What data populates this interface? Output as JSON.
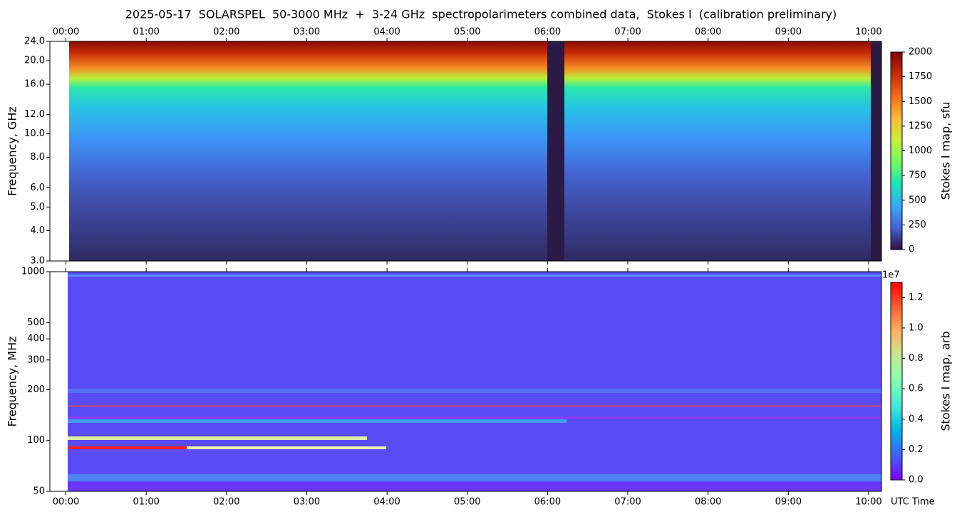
{
  "chart_data": [
    {
      "type": "heatmap",
      "title": "2025-05-17  SOLARSPEL  50-3000 MHz  +  3-24 GHz  spectropolarimeters combined data,  Stokes I  (calibration preliminary)",
      "ylabel": "Frequency, GHz",
      "xlim": [
        -0.2,
        10.16
      ],
      "xticks": [
        {
          "value": 0,
          "label": "00:00"
        },
        {
          "value": 1,
          "label": "01:00"
        },
        {
          "value": 2,
          "label": "02:00"
        },
        {
          "value": 3,
          "label": "03:00"
        },
        {
          "value": 4,
          "label": "04:00"
        },
        {
          "value": 5,
          "label": "05:00"
        },
        {
          "value": 6,
          "label": "06:00"
        },
        {
          "value": 7,
          "label": "07:00"
        },
        {
          "value": 8,
          "label": "08:00"
        },
        {
          "value": 9,
          "label": "09:00"
        },
        {
          "value": 10,
          "label": "10:00"
        }
      ],
      "ylim": [
        3,
        24
      ],
      "log_y": true,
      "yticks": [
        {
          "value": 3,
          "label": "3.0"
        },
        {
          "value": 4,
          "label": "4.0"
        },
        {
          "value": 5,
          "label": "5.0"
        },
        {
          "value": 6,
          "label": "6.0"
        },
        {
          "value": 8,
          "label": "8.0"
        },
        {
          "value": 10,
          "label": "10.0"
        },
        {
          "value": 12,
          "label": "12.0"
        },
        {
          "value": 16,
          "label": "16.0"
        },
        {
          "value": 20,
          "label": "20.0"
        },
        {
          "value": 24,
          "label": "24.0"
        }
      ],
      "colorbar": {
        "label": "Stokes I map, sfu",
        "lim": [
          0,
          2000
        ],
        "ticks": [
          0,
          250,
          500,
          750,
          1000,
          1250,
          1500,
          1750,
          2000
        ],
        "colormap": [
          "#30123b",
          "#4662d7",
          "#36aaf9",
          "#1ae4b6",
          "#72fe5e",
          "#c8ef34",
          "#faba39",
          "#f66b19",
          "#ca2a04",
          "#7a0403"
        ]
      }
    },
    {
      "type": "heatmap",
      "ylabel": "Frequency, MHz",
      "xlabel": "UTC Time",
      "xlim": [
        -0.2,
        10.16
      ],
      "xticks": [
        {
          "value": 0,
          "label": "00:00"
        },
        {
          "value": 1,
          "label": "01:00"
        },
        {
          "value": 2,
          "label": "02:00"
        },
        {
          "value": 3,
          "label": "03:00"
        },
        {
          "value": 4,
          "label": "04:00"
        },
        {
          "value": 5,
          "label": "05:00"
        },
        {
          "value": 6,
          "label": "06:00"
        },
        {
          "value": 7,
          "label": "07:00"
        },
        {
          "value": 8,
          "label": "08:00"
        },
        {
          "value": 9,
          "label": "09:00"
        },
        {
          "value": 10,
          "label": "10:00"
        }
      ],
      "ylim": [
        50,
        1000
      ],
      "log_y": true,
      "yticks": [
        50,
        100,
        200,
        300,
        400,
        500,
        1000
      ],
      "colorbar": {
        "label": "Stokes I map, arb",
        "lim": [
          0,
          1.3
        ],
        "offset": "1e7",
        "ticks": [
          {
            "value": 0,
            "label": "0.0"
          },
          0.2,
          0.4,
          0.6,
          0.8,
          {
            "value": 1,
            "label": "1.0"
          },
          1.2
        ],
        "colormap": [
          "#8000ff",
          "#4062fa",
          "#00b5eb",
          "#40ecd4",
          "#80ffb4",
          "#c0eb8d",
          "#ffb360",
          "#ff6030",
          "#ff0000"
        ]
      }
    }
  ]
}
